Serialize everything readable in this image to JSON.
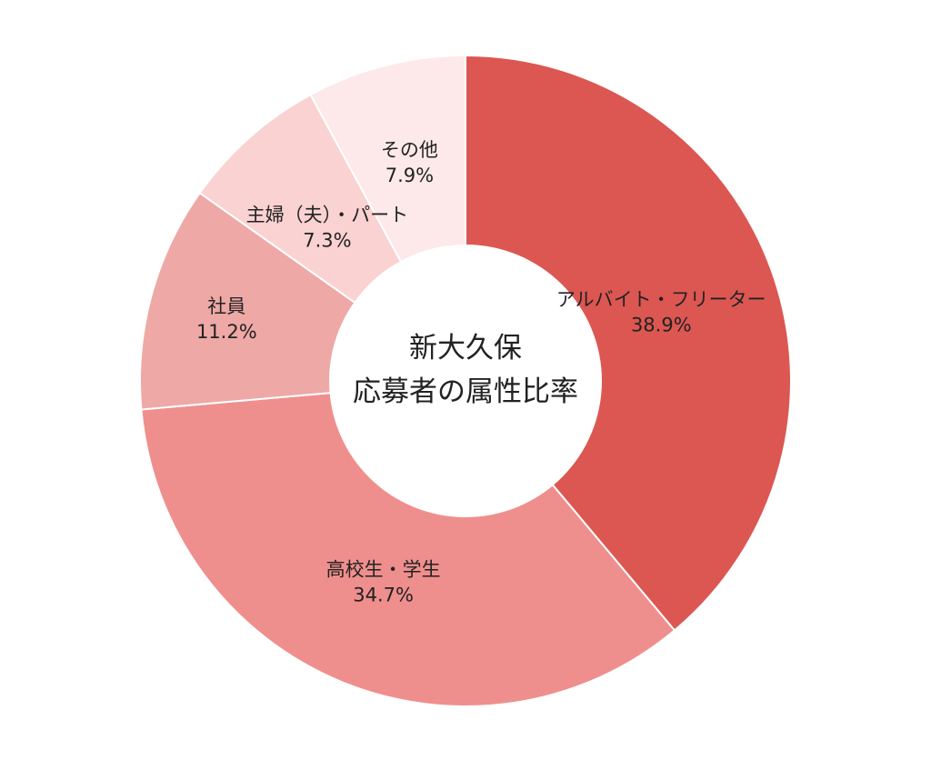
{
  "chart_data": {
    "type": "pie",
    "donut": true,
    "center_text": [
      "新大久保",
      "応募者の属性比率"
    ],
    "categories": [
      "アルバイト・フリーター",
      "高校生・学生",
      "社員",
      "主婦（夫）・パート",
      "その他"
    ],
    "value_labels": [
      "38.9%",
      "34.7%",
      "11.2%",
      "7.3%",
      "7.9%"
    ],
    "values": [
      38.9,
      34.7,
      11.2,
      7.3,
      7.9
    ],
    "colors": [
      "#dc5752",
      "#ef8f8d",
      "#eea8a6",
      "#fad2d2",
      "#fde9e9"
    ],
    "start": "top, clockwise",
    "legend": "none"
  }
}
